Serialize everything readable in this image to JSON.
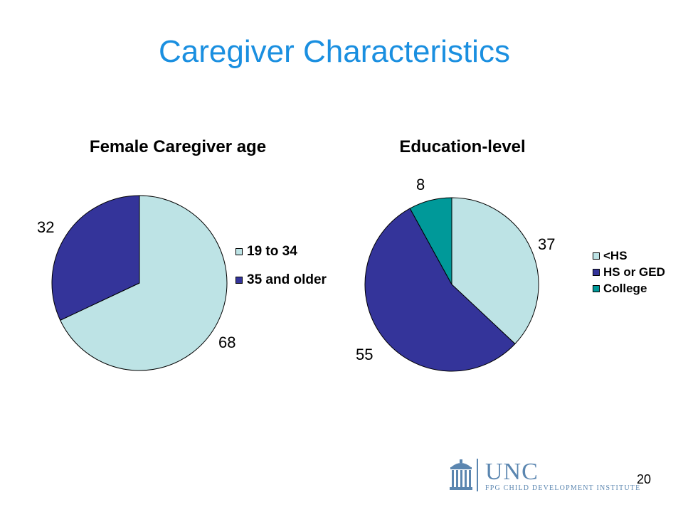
{
  "slide": {
    "title": "Caregiver Characteristics",
    "page_number": "20"
  },
  "logo": {
    "name": "UNC",
    "subtitle": "FPG CHILD DEVELOPMENT INSTITUTE",
    "icon": "old-well-icon",
    "color": "#5b86b0"
  },
  "chart_data": [
    {
      "type": "pie",
      "title": "Female Caregiver age",
      "categories": [
        "19 to 34",
        "35 and older"
      ],
      "values": [
        68,
        32
      ],
      "colors": [
        "#bde3e5",
        "#34349a"
      ],
      "legend": "right",
      "data_labels": [
        "68",
        "32"
      ]
    },
    {
      "type": "pie",
      "title": "Education-level",
      "categories": [
        "<HS",
        "HS or GED",
        "College"
      ],
      "values": [
        37,
        55,
        8
      ],
      "colors": [
        "#bde3e5",
        "#34349a",
        "#009999"
      ],
      "legend": "right",
      "data_labels": [
        "37",
        "55",
        "8"
      ]
    }
  ]
}
